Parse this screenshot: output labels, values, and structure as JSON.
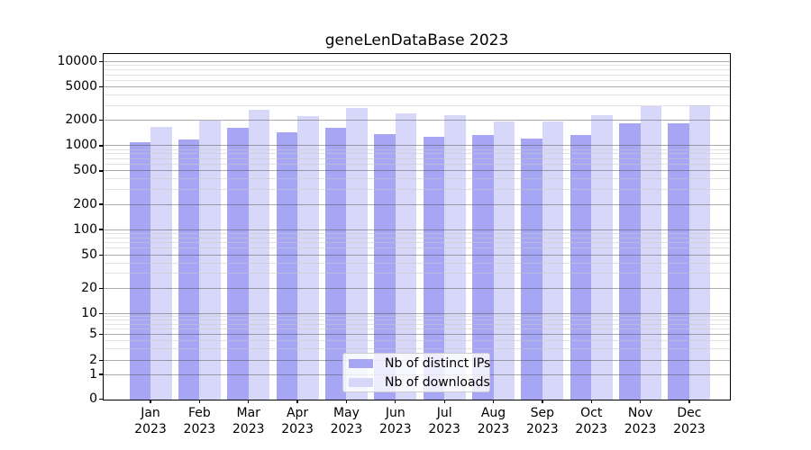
{
  "title": "geneLenDataBase 2023",
  "legend": {
    "items": [
      {
        "label": "Nb of distinct IPs",
        "color": "#a6a6f4"
      },
      {
        "label": "Nb of downloads",
        "color": "#d7d7f9"
      }
    ]
  },
  "colors": {
    "bar_ips": "#a6a6f4",
    "bar_downloads": "#d7d7f9",
    "grid_major": "rgba(70,70,70,0.45)",
    "grid_minor": "rgba(200,200,200,0.55)",
    "axis": "#000000"
  },
  "x_axis": {
    "months": [
      "Jan",
      "Feb",
      "Mar",
      "Apr",
      "May",
      "Jun",
      "Jul",
      "Aug",
      "Sep",
      "Oct",
      "Nov",
      "Dec"
    ],
    "year": "2023"
  },
  "y_axis": {
    "ticks": [
      10000,
      5000,
      2000,
      1000,
      500,
      200,
      100,
      50,
      20,
      10,
      5,
      2,
      1,
      0
    ],
    "minor_subs": [
      3,
      4,
      6,
      7,
      8,
      9
    ]
  },
  "chart_data": {
    "type": "bar",
    "title": "geneLenDataBase 2023",
    "categories": [
      "Jan 2023",
      "Feb 2023",
      "Mar 2023",
      "Apr 2023",
      "May 2023",
      "Jun 2023",
      "Jul 2023",
      "Aug 2023",
      "Sep 2023",
      "Oct 2023",
      "Nov 2023",
      "Dec 2023"
    ],
    "series": [
      {
        "name": "Nb of distinct IPs",
        "values": [
          1100,
          1190,
          1630,
          1450,
          1620,
          1390,
          1280,
          1350,
          1210,
          1350,
          1840,
          1870
        ]
      },
      {
        "name": "Nb of downloads",
        "values": [
          1660,
          1980,
          2650,
          2240,
          2820,
          2400,
          2300,
          1950,
          1940,
          2340,
          2940,
          3020
        ]
      }
    ],
    "xlabel": "",
    "ylabel": "",
    "yscale": "symlog",
    "yticks": [
      10000,
      5000,
      2000,
      1000,
      500,
      200,
      100,
      50,
      20,
      10,
      5,
      2,
      1,
      0
    ],
    "ylim": [
      0,
      12600
    ],
    "grid": "both",
    "legend_position": "lower center"
  }
}
